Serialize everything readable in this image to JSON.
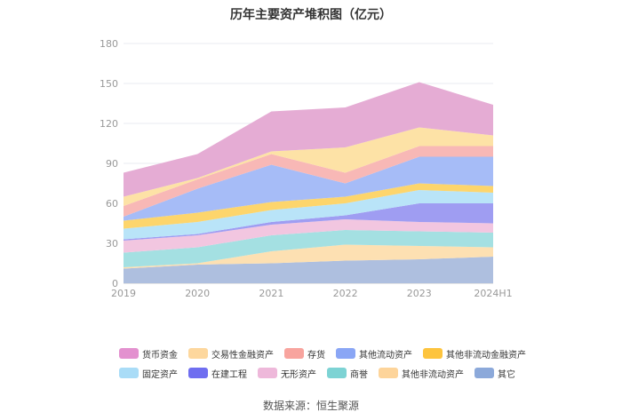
{
  "chart_data": {
    "type": "area",
    "title": "历年主要资产堆积图（亿元）",
    "categories": [
      "2019",
      "2020",
      "2021",
      "2022",
      "2023",
      "2024H1"
    ],
    "ylim": [
      0,
      180
    ],
    "yticks": [
      0,
      30,
      60,
      90,
      120,
      150,
      180
    ],
    "grid": true,
    "legend_position": "bottom",
    "series": [
      {
        "name": "其它",
        "color": "#aebfdf",
        "values": [
          11,
          14,
          15,
          17,
          18,
          20
        ]
      },
      {
        "name": "其他非流动资产",
        "color": "#fde0b2",
        "values": [
          1,
          1,
          9,
          12,
          10,
          7
        ]
      },
      {
        "name": "商誉",
        "color": "#a4e0e2",
        "values": [
          11,
          12,
          12,
          11,
          11,
          11
        ]
      },
      {
        "name": "无形资产",
        "color": "#f2c6e0",
        "values": [
          9,
          9,
          8,
          8,
          7,
          7
        ]
      },
      {
        "name": "在建工程",
        "color": "#9f9df2",
        "values": [
          1,
          1,
          2,
          3,
          14,
          15
        ]
      },
      {
        "name": "固定资产",
        "color": "#b9e4f8",
        "values": [
          8,
          9,
          9,
          9,
          10,
          8
        ]
      },
      {
        "name": "其他非流动金融资产",
        "color": "#fdd56c",
        "values": [
          6,
          7,
          6,
          5,
          5,
          5
        ]
      },
      {
        "name": "其他流动资产",
        "color": "#a6bcf7",
        "values": [
          3,
          18,
          28,
          10,
          20,
          22
        ]
      },
      {
        "name": "存货",
        "color": "#f8b8b6",
        "values": [
          8,
          7,
          8,
          8,
          8,
          8
        ]
      },
      {
        "name": "交易性金融资产",
        "color": "#fde2a6",
        "values": [
          7,
          1,
          2,
          19,
          14,
          8
        ]
      },
      {
        "name": "货币资金",
        "color": "#e5acd4",
        "values": [
          18,
          18,
          30,
          30,
          34,
          23
        ]
      }
    ]
  },
  "legend": {
    "row1": [
      {
        "label": "货币资金",
        "color": "#e391cf"
      },
      {
        "label": "交易性金融资产",
        "color": "#fdd79d"
      },
      {
        "label": "存货",
        "color": "#f8a49e"
      },
      {
        "label": "其他流动资产",
        "color": "#8aa6f5"
      },
      {
        "label": "其他非流动金融资产",
        "color": "#fdc43e"
      }
    ],
    "row2": [
      {
        "label": "固定资产",
        "color": "#a9dcf7"
      },
      {
        "label": "在建工程",
        "color": "#6f6ef0"
      },
      {
        "label": "无形资产",
        "color": "#eeb8da"
      },
      {
        "label": "商誉",
        "color": "#7dd3d4"
      },
      {
        "label": "其他非流动资产",
        "color": "#fdd49a"
      },
      {
        "label": "其它",
        "color": "#8ca9da"
      }
    ]
  },
  "source": "数据来源：恒生聚源"
}
